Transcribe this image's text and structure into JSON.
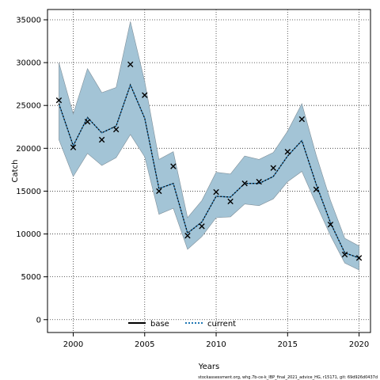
{
  "chart_data": {
    "type": "line",
    "xlabel": "Years",
    "ylabel": "Catch",
    "xlim": [
      1998.2,
      2020.8
    ],
    "ylim": [
      -1500,
      36200
    ],
    "xticks": [
      2000,
      2005,
      2010,
      2015,
      2020
    ],
    "yticks": [
      0,
      5000,
      10000,
      15000,
      20000,
      25000,
      30000,
      35000
    ],
    "grid": true,
    "legend_position": "bottom-center",
    "legend": [
      {
        "name": "base",
        "style": "solid",
        "color": "#000000"
      },
      {
        "name": "current",
        "style": "dotted",
        "color": "#1f77b4"
      }
    ],
    "band_color": "#a3c4d6",
    "x": [
      1999,
      2000,
      2001,
      2002,
      2003,
      2004,
      2005,
      2006,
      2007,
      2008,
      2009,
      2010,
      2011,
      2012,
      2013,
      2014,
      2015,
      2016,
      2017,
      2018,
      2019,
      2020
    ],
    "series": [
      {
        "name": "current",
        "kind": "median",
        "values": [
          25200,
          20300,
          23600,
          21800,
          22600,
          27400,
          23500,
          15300,
          15900,
          10100,
          11400,
          14400,
          14300,
          15900,
          15900,
          16700,
          19100,
          20900,
          15800,
          11300,
          7800,
          7200
        ]
      },
      {
        "kind": "upper",
        "values": [
          30000,
          24000,
          29300,
          26500,
          27100,
          34800,
          27800,
          18700,
          19600,
          11900,
          13900,
          17200,
          17000,
          19100,
          18700,
          19500,
          22000,
          25200,
          19200,
          13900,
          9500,
          8600
        ]
      },
      {
        "kind": "lower",
        "values": [
          21000,
          16700,
          19400,
          18000,
          18900,
          21600,
          19000,
          12300,
          13000,
          8200,
          9700,
          11900,
          12000,
          13500,
          13300,
          14100,
          16100,
          17300,
          13500,
          9800,
          6600,
          5800
        ]
      },
      {
        "kind": "observed",
        "values": [
          25600,
          20100,
          23100,
          21000,
          22200,
          29800,
          26200,
          15000,
          17900,
          9800,
          10900,
          14900,
          13800,
          15900,
          16100,
          17700,
          19600,
          23400,
          15200,
          11100,
          7600,
          7200
        ]
      }
    ]
  },
  "footnote": "stockassessment.org, whg.7b-ce-k_IBP_final_2021_advice_HG, r15171, git: 69d926d0437d"
}
